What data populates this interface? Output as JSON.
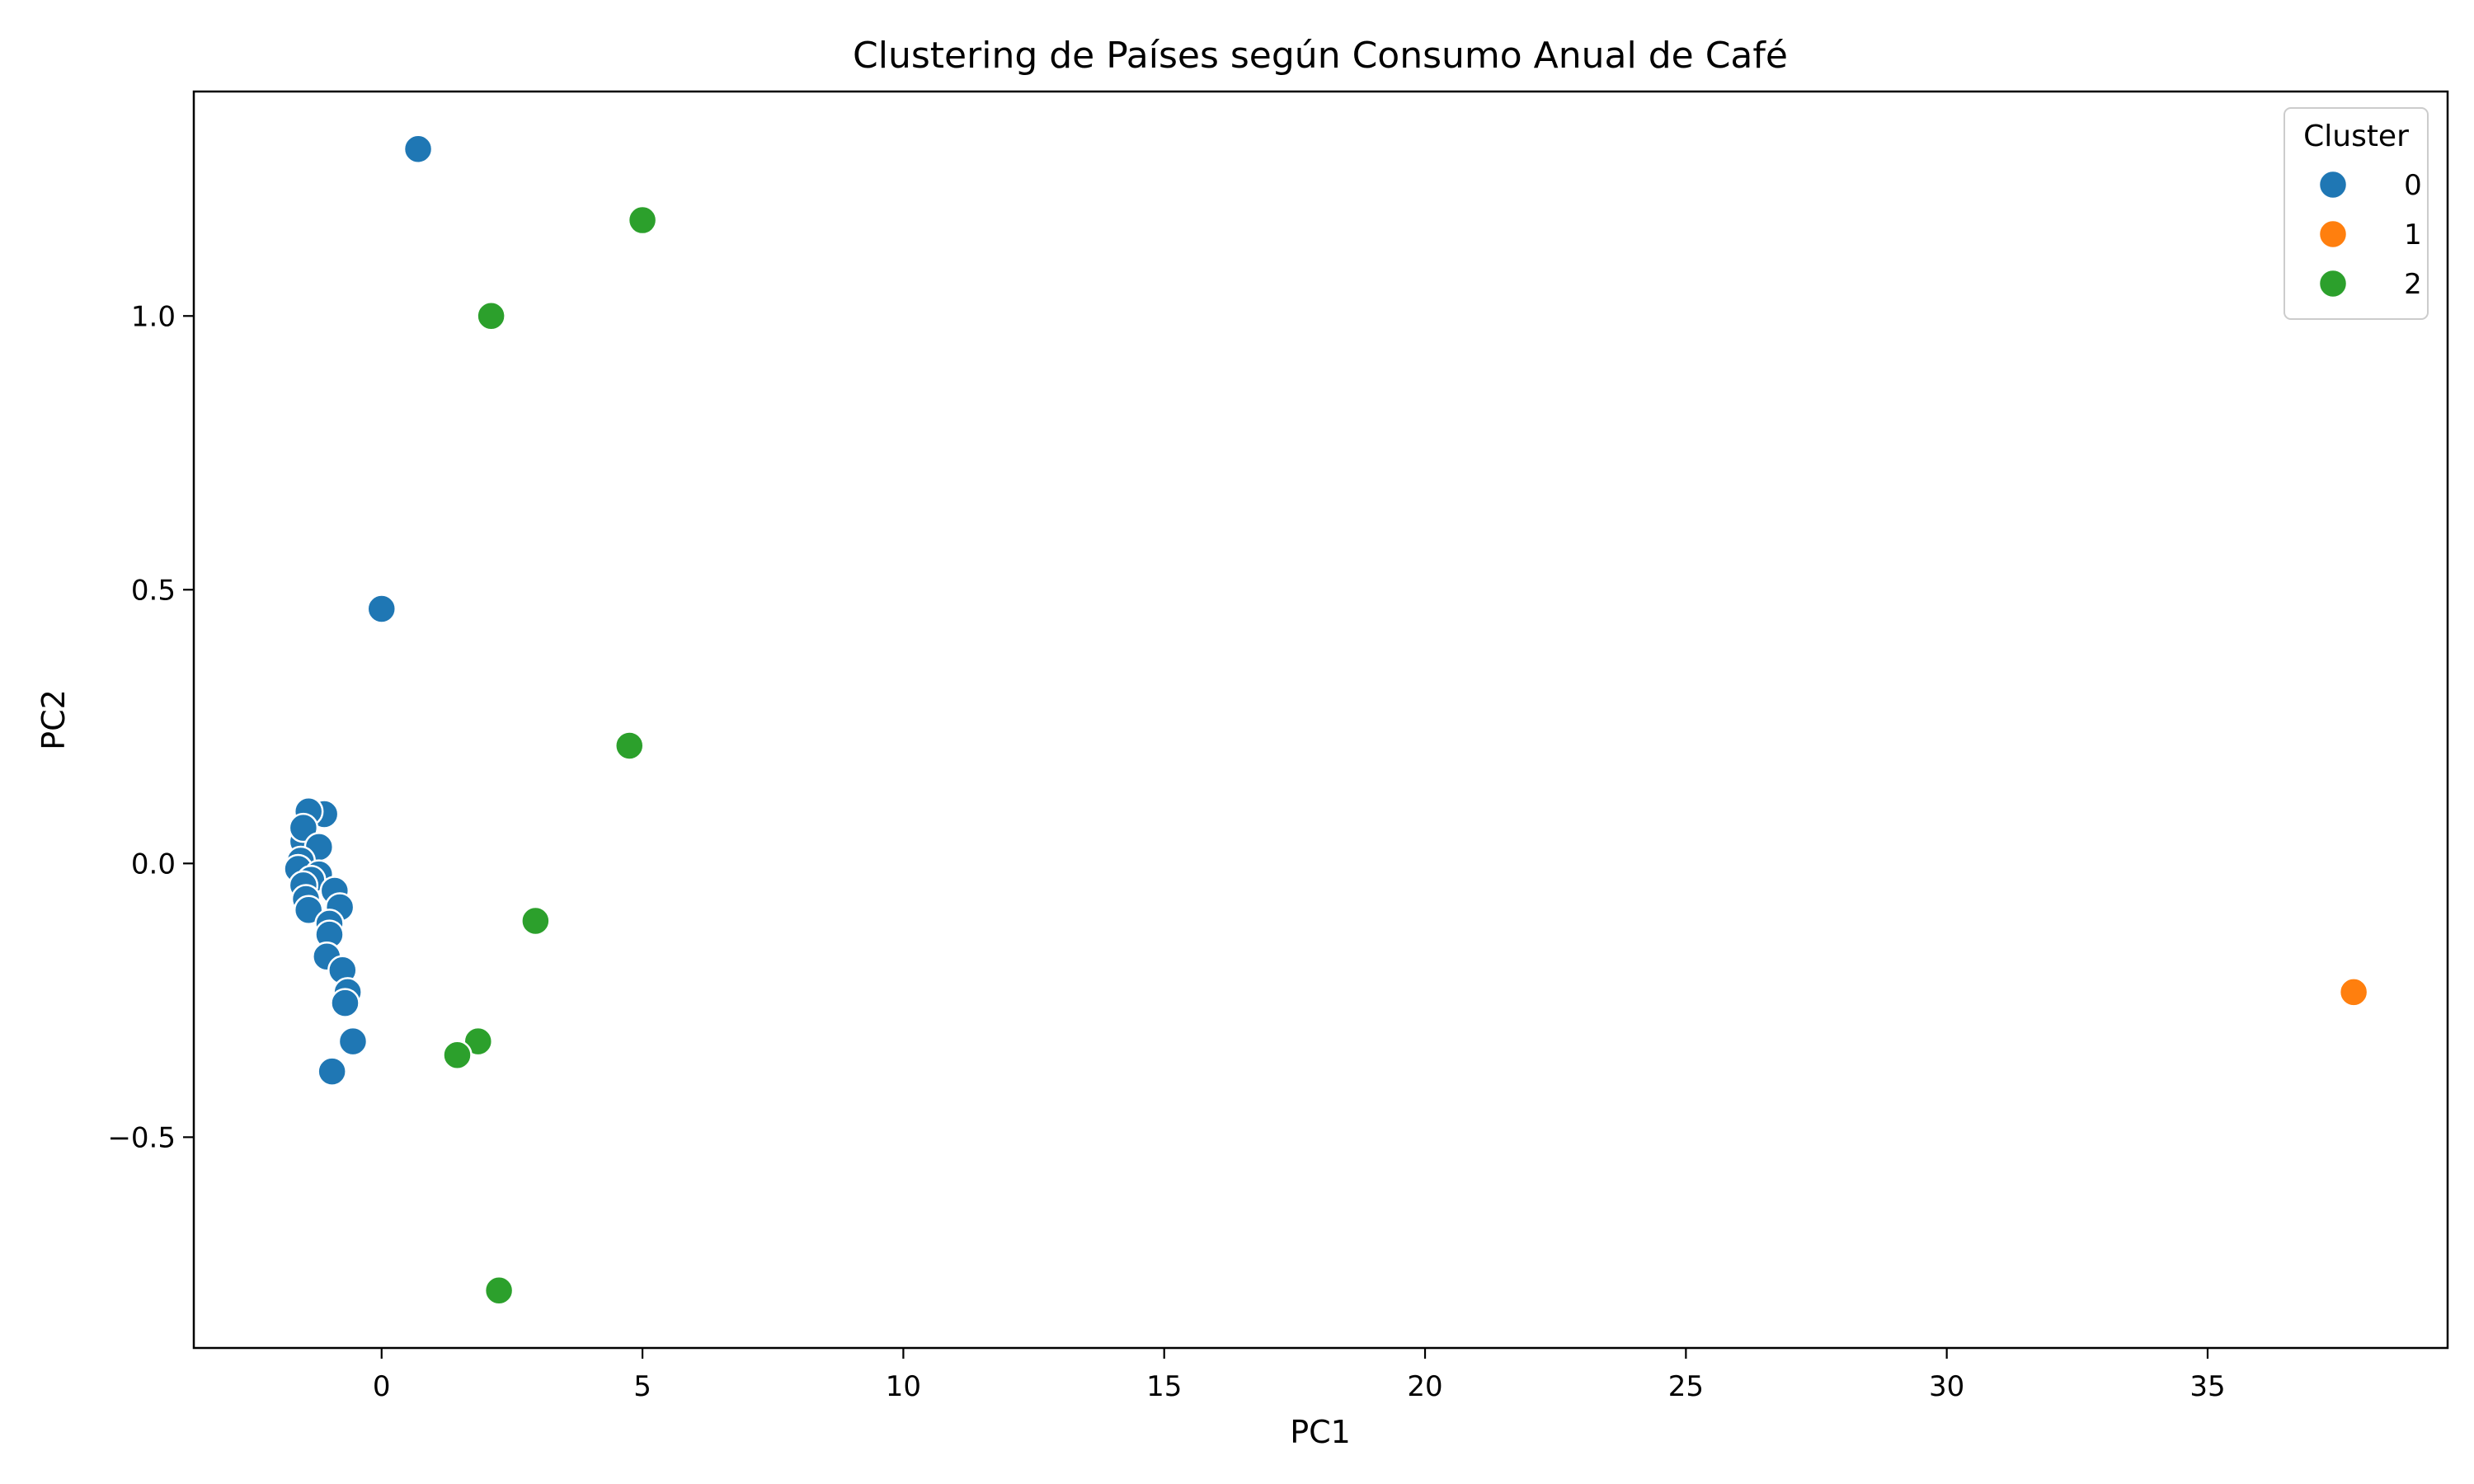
{
  "chart_data": {
    "type": "scatter",
    "title": "Clustering de Países según Consumo Anual de Café",
    "xlabel": "PC1",
    "ylabel": "PC2",
    "xlim": [
      -3.6,
      39.6
    ],
    "ylim": [
      -0.885,
      1.41
    ],
    "xticks": [
      0,
      5,
      10,
      15,
      20,
      25,
      30,
      35
    ],
    "yticks": [
      -0.5,
      0.0,
      0.5,
      1.0
    ],
    "xtick_labels": [
      "0",
      "5",
      "10",
      "15",
      "20",
      "25",
      "30",
      "35"
    ],
    "ytick_labels": [
      "−0.5",
      "0.0",
      "0.5",
      "1.0"
    ],
    "grid": false,
    "legend": {
      "title": "Cluster",
      "placement": "top-right",
      "entries": [
        {
          "label": "0",
          "color": "#1f77b4"
        },
        {
          "label": "1",
          "color": "#ff7f0e"
        },
        {
          "label": "2",
          "color": "#2ca02c"
        }
      ]
    },
    "series": [
      {
        "name": "0",
        "color": "#1f77b4",
        "points": [
          [
            0.7,
            1.305
          ],
          [
            0.0,
            0.465
          ],
          [
            -1.1,
            0.09
          ],
          [
            -1.4,
            0.095
          ],
          [
            -1.5,
            0.04
          ],
          [
            -1.5,
            0.065
          ],
          [
            -1.2,
            0.03
          ],
          [
            -1.55,
            0.005
          ],
          [
            -1.6,
            -0.01
          ],
          [
            -1.2,
            -0.02
          ],
          [
            -1.35,
            -0.03
          ],
          [
            -1.5,
            -0.04
          ],
          [
            -0.9,
            -0.05
          ],
          [
            -1.45,
            -0.065
          ],
          [
            -1.4,
            -0.085
          ],
          [
            -0.8,
            -0.08
          ],
          [
            -1.0,
            -0.11
          ],
          [
            -1.0,
            -0.13
          ],
          [
            -1.05,
            -0.17
          ],
          [
            -0.75,
            -0.195
          ],
          [
            -0.65,
            -0.235
          ],
          [
            -0.7,
            -0.255
          ],
          [
            -0.55,
            -0.325
          ],
          [
            -0.95,
            -0.38
          ]
        ]
      },
      {
        "name": "1",
        "color": "#ff7f0e",
        "points": [
          [
            37.8,
            -0.235
          ]
        ]
      },
      {
        "name": "2",
        "color": "#2ca02c",
        "points": [
          [
            5.0,
            1.175
          ],
          [
            2.1,
            1.0
          ],
          [
            4.75,
            0.215
          ],
          [
            2.95,
            -0.105
          ],
          [
            1.85,
            -0.325
          ],
          [
            1.45,
            -0.35
          ],
          [
            2.25,
            -0.78
          ]
        ]
      }
    ]
  }
}
